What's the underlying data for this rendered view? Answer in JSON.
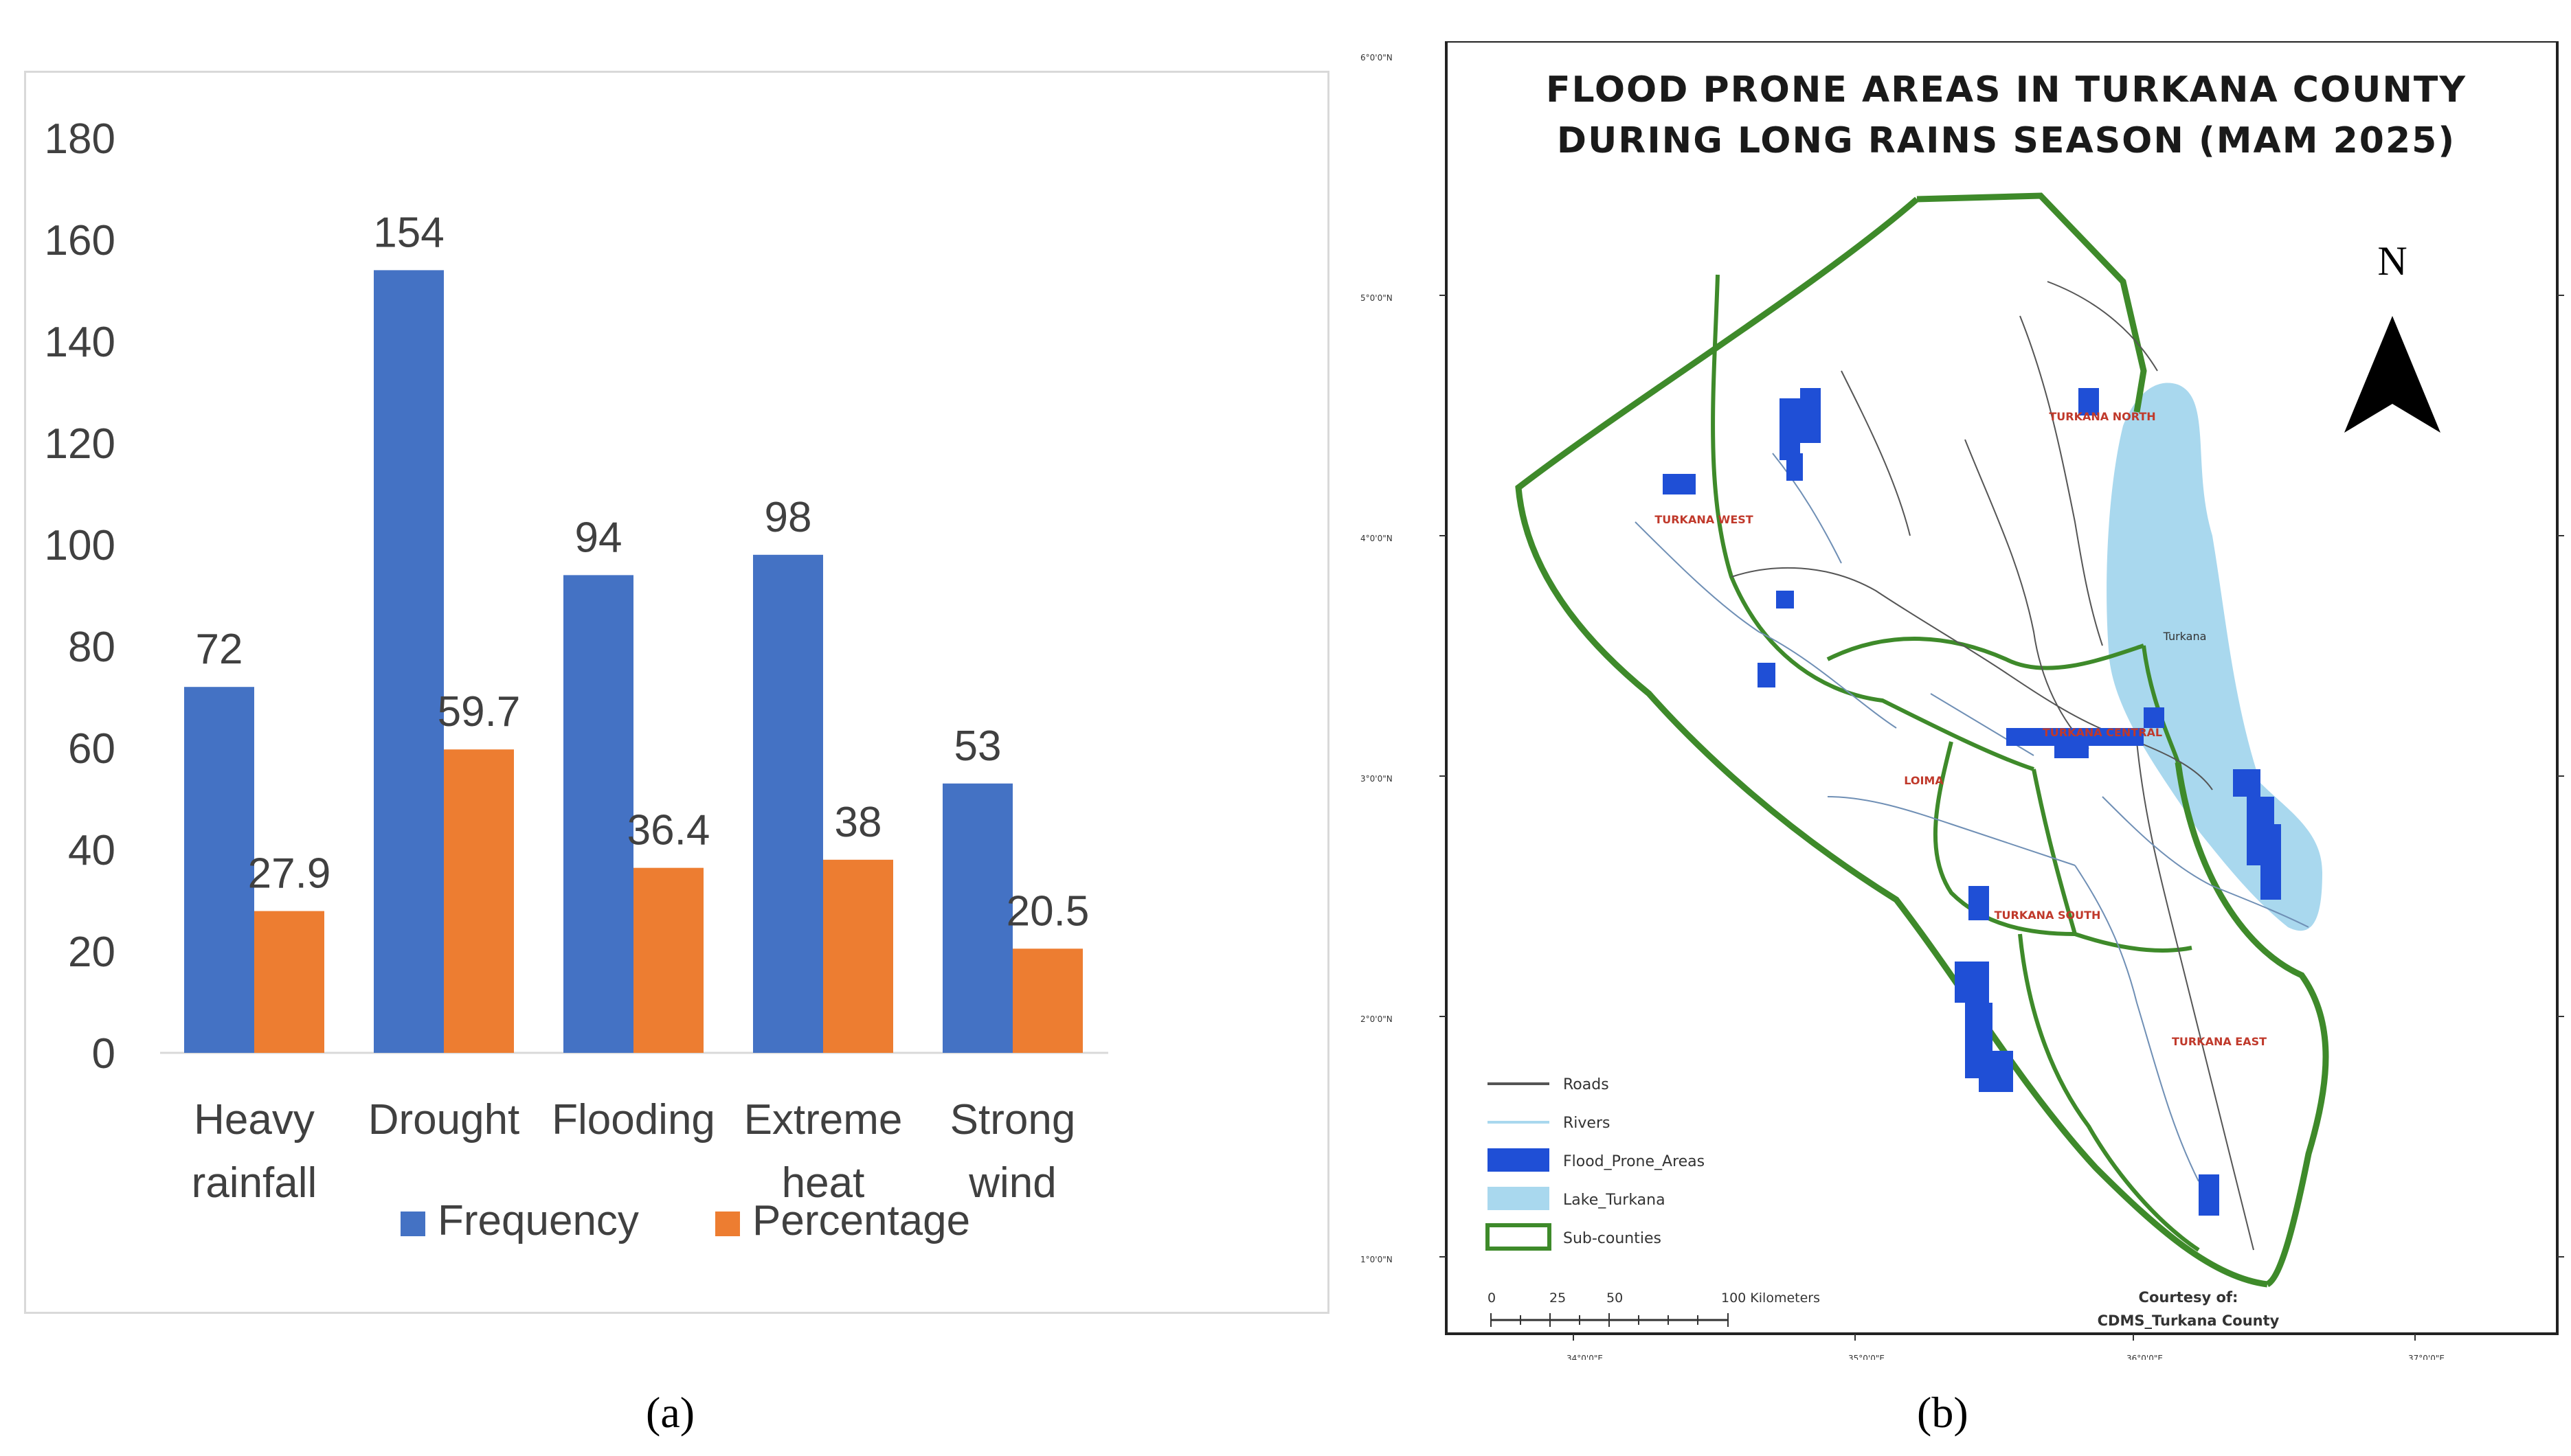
{
  "chart_data": {
    "type": "bar",
    "categories": [
      [
        "Heavy",
        "rainfall"
      ],
      [
        "Drought"
      ],
      [
        "Flooding"
      ],
      [
        "Extreme",
        "heat"
      ],
      [
        "Strong",
        "wind"
      ]
    ],
    "series": [
      {
        "name": "Frequency",
        "color": "#4472c4",
        "values": [
          72,
          154,
          94,
          98,
          53
        ],
        "labels": [
          "72",
          "154",
          "94",
          "98",
          "53"
        ]
      },
      {
        "name": "Percentage",
        "color": "#ed7d31",
        "values": [
          27.9,
          59.7,
          36.4,
          38,
          20.5
        ],
        "labels": [
          "27.9",
          "59.7",
          "36.4",
          "38",
          "20.5"
        ]
      }
    ],
    "y_ticks": [
      "0",
      "20",
      "40",
      "60",
      "80",
      "100",
      "120",
      "140",
      "160",
      "180"
    ],
    "ylim": [
      0,
      180
    ],
    "grid": false,
    "legend": "bottom"
  },
  "panel_labels": {
    "a": "(a)",
    "b": "(b)"
  },
  "map": {
    "title_line1": "FLOOD PRONE AREAS IN TURKANA COUNTY",
    "title_line2": "DURING LONG RAINS SEASON (MAM 2025)",
    "north": "N",
    "subcounties": [
      "TURKANA NORTH",
      "TURKANA WEST",
      "Turkana",
      "LOIMA",
      "TURKANA CENTRAL",
      "TURKANA SOUTH",
      "TURKANA EAST"
    ],
    "legend": {
      "roads": "Roads",
      "rivers": "Rivers",
      "flood": "Flood_Prone_Areas",
      "lake": "Lake_Turkana",
      "subcounties": "Sub-counties"
    },
    "scale": {
      "t0": "0",
      "t1": "25",
      "t2": "50",
      "t3": "100 Kilometers"
    },
    "credit_line1": "Courtesy of:",
    "credit_line2": "CDMS_Turkana County",
    "lat_labels": [
      "5°0'0\"N",
      "4°0'0\"N",
      "3°0'0\"N",
      "2°0'0\"N",
      "1°0'0\"N"
    ],
    "lon_labels": [
      "34°0'0\"E",
      "35°0'0\"E",
      "36°0'0\"E",
      "37°0'0\"E"
    ],
    "colors": {
      "lake": "#a9d8ee",
      "flood": "#1f4fd6",
      "subcounty_line": "#3e8a2a",
      "road": "#555555",
      "river": "#6f8fb5"
    }
  }
}
